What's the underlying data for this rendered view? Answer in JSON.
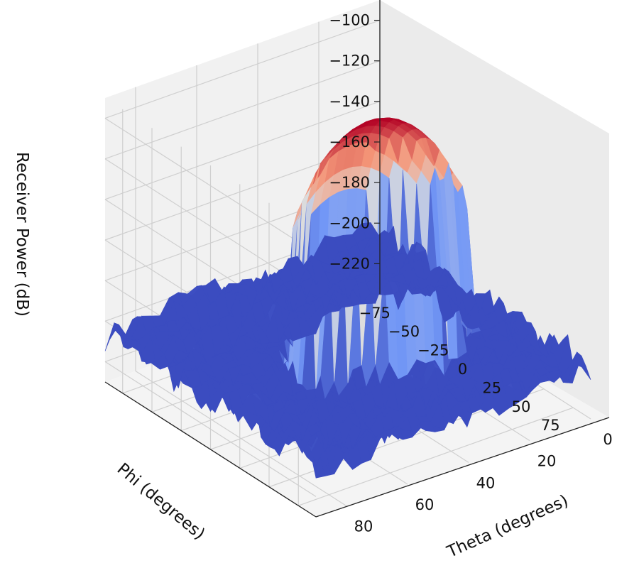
{
  "chart_data": {
    "type": "surface3d",
    "colormap": "coolwarm",
    "zlabel": "Receiver Power (dB)",
    "xlabel": "Phi (degrees)",
    "ylabel": "Theta (degrees)",
    "z_ticks": [
      -100,
      -120,
      -140,
      -160,
      -180,
      -200,
      -220
    ],
    "z_tick_labels": [
      "−100",
      "−120",
      "−140",
      "−160",
      "−180",
      "−200",
      "−220"
    ],
    "x_ticks": [
      -75,
      -50,
      -25,
      0,
      25,
      50,
      75
    ],
    "x_tick_labels": [
      "−75",
      "−50",
      "−25",
      "0",
      "25",
      "50",
      "75"
    ],
    "y_ticks": [
      0,
      20,
      40,
      60,
      80
    ],
    "y_tick_labels": [
      "0",
      "20",
      "40",
      "60",
      "80"
    ],
    "xlim": [
      -90,
      90
    ],
    "ylim": [
      0,
      90
    ],
    "zlim": [
      -230,
      -90
    ],
    "main_lobe": {
      "phi": 0,
      "theta": 35,
      "peak_db": -98
    },
    "noise_floor_db": -205,
    "grid": true
  }
}
